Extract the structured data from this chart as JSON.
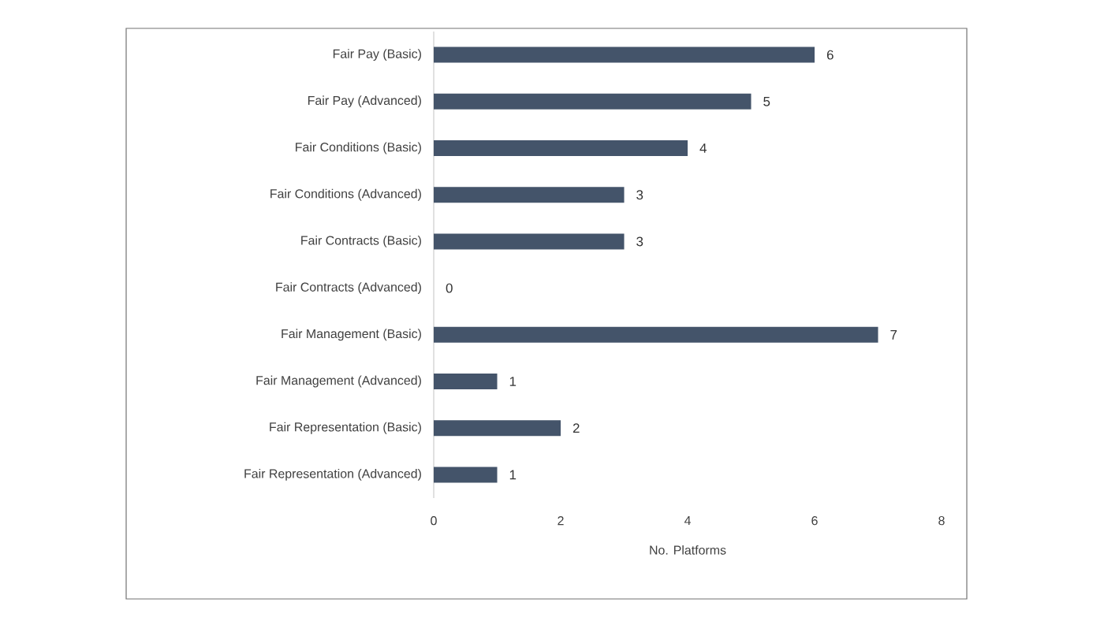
{
  "chart_data": {
    "type": "bar",
    "orientation": "horizontal",
    "categories": [
      "Fair Pay (Basic)",
      "Fair Pay (Advanced)",
      "Fair Conditions (Basic)",
      "Fair Conditions (Advanced)",
      "Fair Contracts (Basic)",
      "Fair Contracts (Advanced)",
      "Fair Management (Basic)",
      "Fair Management (Advanced)",
      "Fair Representation (Basic)",
      "Fair Representation (Advanced)"
    ],
    "values": [
      6,
      5,
      4,
      3,
      3,
      0,
      7,
      1,
      2,
      1
    ],
    "color": "#44546a",
    "xlabel": "No. Platforms",
    "xlim": [
      0,
      8
    ],
    "xticks": [
      0,
      2,
      4,
      6,
      8
    ],
    "data_labels": true,
    "grid": false
  }
}
